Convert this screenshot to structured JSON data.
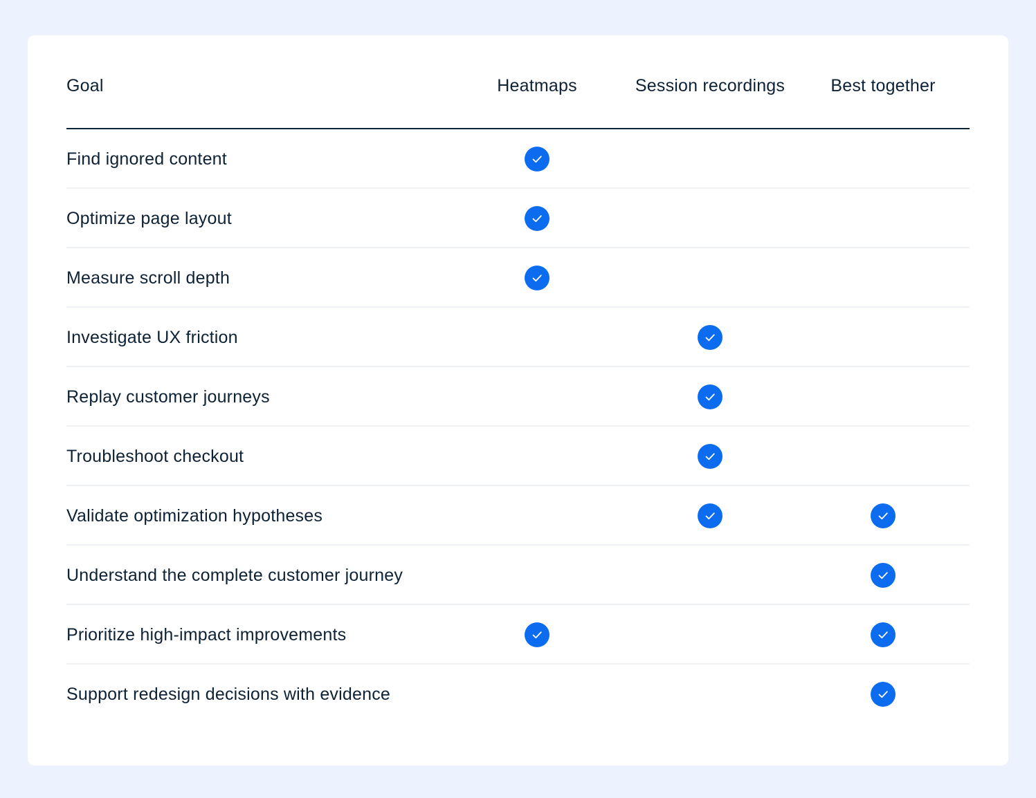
{
  "table": {
    "headers": {
      "goal": "Goal",
      "heatmaps": "Heatmaps",
      "session_recordings": "Session recordings",
      "best_together": "Best together"
    },
    "rows": [
      {
        "goal": "Find ignored content",
        "heatmaps": true,
        "session_recordings": false,
        "best_together": false
      },
      {
        "goal": "Optimize page layout",
        "heatmaps": true,
        "session_recordings": false,
        "best_together": false
      },
      {
        "goal": "Measure scroll depth",
        "heatmaps": true,
        "session_recordings": false,
        "best_together": false
      },
      {
        "goal": "Investigate UX friction",
        "heatmaps": false,
        "session_recordings": true,
        "best_together": false
      },
      {
        "goal": "Replay customer journeys",
        "heatmaps": false,
        "session_recordings": true,
        "best_together": false
      },
      {
        "goal": "Troubleshoot checkout",
        "heatmaps": false,
        "session_recordings": true,
        "best_together": false
      },
      {
        "goal": "Validate optimization hypotheses",
        "heatmaps": false,
        "session_recordings": true,
        "best_together": true
      },
      {
        "goal": "Understand the complete customer journey",
        "heatmaps": false,
        "session_recordings": false,
        "best_together": true
      },
      {
        "goal": "Prioritize high-impact improvements",
        "heatmaps": true,
        "session_recordings": false,
        "best_together": true
      },
      {
        "goal": "Support redesign decisions with evidence",
        "heatmaps": false,
        "session_recordings": false,
        "best_together": true
      }
    ]
  },
  "icons": {
    "check": "check-circle-icon"
  },
  "colors": {
    "background": "#ecf3fe",
    "card": "#ffffff",
    "text": "#0e2236",
    "accent": "#0b6cf0",
    "divider": "#eef1f5"
  }
}
